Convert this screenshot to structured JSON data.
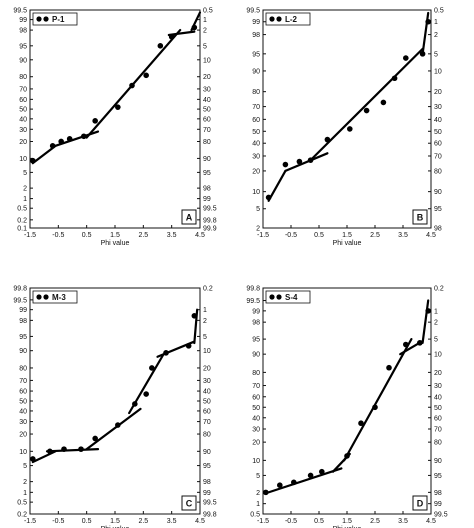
{
  "chart_data": [
    {
      "type": "scatter",
      "legend": "P-1",
      "panel_letter": "A",
      "xlabel": "Phi value",
      "x_ticks": [
        "-1.5",
        "-0.5",
        "0.5",
        "1.5",
        "2.5",
        "3.5",
        "4.5"
      ],
      "xlim": [
        -1.5,
        4.5
      ],
      "yscale": "probability",
      "ylim": [
        0.1,
        99.5
      ],
      "left_ticks": [
        "99.5",
        "99",
        "98",
        "95",
        "90",
        "80",
        "70",
        "60",
        "50",
        "40",
        "30",
        "20",
        "10",
        "5",
        "2",
        "1",
        "0.5",
        "0.2",
        "0.1"
      ],
      "right_ticks": [
        "0.5",
        "1",
        "2",
        "5",
        "10",
        "20",
        "30",
        "40",
        "50",
        "60",
        "70",
        "80",
        "90",
        "95",
        "98",
        "99",
        "99.5",
        "99.8",
        "99.9"
      ],
      "points": [
        [
          -1.4,
          9
        ],
        [
          -0.7,
          17
        ],
        [
          -0.4,
          20
        ],
        [
          -0.1,
          22
        ],
        [
          0.4,
          24
        ],
        [
          0.8,
          38
        ],
        [
          1.6,
          52
        ],
        [
          2.1,
          73
        ],
        [
          2.6,
          81
        ],
        [
          3.1,
          95
        ],
        [
          3.5,
          97
        ],
        [
          4.3,
          98.3
        ]
      ],
      "segments": [
        [
          [
            -1.4,
            8
          ],
          [
            -0.6,
            17
          ]
        ],
        [
          [
            -0.6,
            17
          ],
          [
            0.9,
            28
          ]
        ],
        [
          [
            0.5,
            23
          ],
          [
            3.8,
            98
          ]
        ],
        [
          [
            3.4,
            97.3
          ],
          [
            4.3,
            97.8
          ]
        ],
        [
          [
            4.2,
            98
          ],
          [
            4.5,
            99.4
          ]
        ]
      ]
    },
    {
      "type": "scatter",
      "legend": "L-2",
      "panel_letter": "B",
      "xlabel": "Phi value",
      "x_ticks": [
        "-1.5",
        "-0.5",
        "0.5",
        "1.5",
        "2.5",
        "3.5",
        "4.5"
      ],
      "xlim": [
        -1.5,
        4.5
      ],
      "yscale": "probability",
      "ylim": [
        2,
        99.5
      ],
      "left_ticks": [
        "99.5",
        "99",
        "98",
        "95",
        "90",
        "80",
        "70",
        "60",
        "50",
        "40",
        "30",
        "20",
        "10",
        "5",
        "2"
      ],
      "right_ticks": [
        "0.5",
        "1",
        "2",
        "5",
        "10",
        "20",
        "30",
        "40",
        "50",
        "60",
        "70",
        "80",
        "90",
        "95",
        "98"
      ],
      "points": [
        [
          -1.3,
          8
        ],
        [
          -0.7,
          24
        ],
        [
          -0.2,
          26
        ],
        [
          0.2,
          27
        ],
        [
          0.8,
          43
        ],
        [
          1.6,
          52
        ],
        [
          2.2,
          67
        ],
        [
          2.8,
          73
        ],
        [
          3.2,
          87
        ],
        [
          3.6,
          94
        ],
        [
          4.2,
          95
        ],
        [
          4.4,
          99
        ]
      ],
      "segments": [
        [
          [
            -1.3,
            7
          ],
          [
            -0.7,
            20
          ]
        ],
        [
          [
            -0.7,
            20
          ],
          [
            0.8,
            32
          ]
        ],
        [
          [
            0.2,
            27
          ],
          [
            4.2,
            96
          ]
        ],
        [
          [
            4.2,
            95
          ],
          [
            4.4,
            99.4
          ]
        ]
      ]
    },
    {
      "type": "scatter",
      "legend": "M-3",
      "panel_letter": "C",
      "xlabel": "Phi value",
      "x_ticks": [
        "-1.5",
        "-0.5",
        "0.5",
        "1.5",
        "2.5",
        "3.5",
        "4.5"
      ],
      "xlim": [
        -1.5,
        4.5
      ],
      "yscale": "probability",
      "ylim": [
        0.2,
        99.8
      ],
      "left_ticks": [
        "99.8",
        "99.5",
        "99",
        "98",
        "95",
        "90",
        "80",
        "70",
        "60",
        "50",
        "40",
        "30",
        "20",
        "10",
        "5",
        "2",
        "1",
        "0.5",
        "0.2"
      ],
      "right_ticks": [
        "0.2",
        "1",
        "2",
        "5",
        "10",
        "20",
        "30",
        "40",
        "50",
        "60",
        "70",
        "80",
        "90",
        "95",
        "98",
        "99",
        "99.5",
        "99.8"
      ],
      "points": [
        [
          -1.4,
          7
        ],
        [
          -0.8,
          10
        ],
        [
          -0.3,
          11
        ],
        [
          0.3,
          11
        ],
        [
          0.8,
          17
        ],
        [
          1.6,
          27
        ],
        [
          2.2,
          47
        ],
        [
          2.6,
          57
        ],
        [
          2.8,
          80
        ],
        [
          3.3,
          89
        ],
        [
          4.1,
          92
        ],
        [
          4.3,
          98.5
        ]
      ],
      "segments": [
        [
          [
            -1.4,
            6
          ],
          [
            -0.6,
            10
          ]
        ],
        [
          [
            -0.9,
            10
          ],
          [
            0.9,
            11
          ]
        ],
        [
          [
            0.5,
            11
          ],
          [
            2.4,
            42
          ]
        ],
        [
          [
            2.0,
            38
          ],
          [
            3.2,
            88
          ]
        ],
        [
          [
            3.0,
            87
          ],
          [
            4.3,
            93.5
          ]
        ],
        [
          [
            4.3,
            93
          ],
          [
            4.4,
            99
          ]
        ]
      ]
    },
    {
      "type": "scatter",
      "legend": "S-4",
      "panel_letter": "D",
      "xlabel": "Phi value",
      "x_ticks": [
        "-1.5",
        "-0.5",
        "0.5",
        "1.5",
        "2.5",
        "3.5",
        "4.5"
      ],
      "xlim": [
        -1.5,
        4.5
      ],
      "yscale": "probability",
      "ylim": [
        0.5,
        99.8
      ],
      "left_ticks": [
        "99.8",
        "99.5",
        "99",
        "98",
        "95",
        "90",
        "80",
        "70",
        "60",
        "50",
        "40",
        "30",
        "20",
        "10",
        "5",
        "2",
        "1",
        "0.5"
      ],
      "right_ticks": [
        "0.2",
        "1",
        "2",
        "5",
        "10",
        "20",
        "30",
        "40",
        "50",
        "60",
        "70",
        "80",
        "90",
        "95",
        "98",
        "99",
        "99.5"
      ],
      "points": [
        [
          -1.4,
          2
        ],
        [
          -0.9,
          3
        ],
        [
          -0.4,
          3.5
        ],
        [
          0.2,
          5
        ],
        [
          0.6,
          6
        ],
        [
          1.5,
          12
        ],
        [
          2.0,
          35
        ],
        [
          2.5,
          50
        ],
        [
          3.0,
          83
        ],
        [
          3.6,
          93.5
        ],
        [
          4.1,
          94
        ],
        [
          4.4,
          99
        ]
      ],
      "segments": [
        [
          [
            -1.4,
            1.9
          ],
          [
            1.3,
            7
          ]
        ],
        [
          [
            1.0,
            6
          ],
          [
            1.6,
            13
          ]
        ],
        [
          [
            1.4,
            10
          ],
          [
            3.8,
            95
          ]
        ],
        [
          [
            3.4,
            90
          ],
          [
            4.2,
            94.5
          ]
        ],
        [
          [
            4.2,
            94
          ],
          [
            4.4,
            99.5
          ]
        ]
      ]
    }
  ]
}
